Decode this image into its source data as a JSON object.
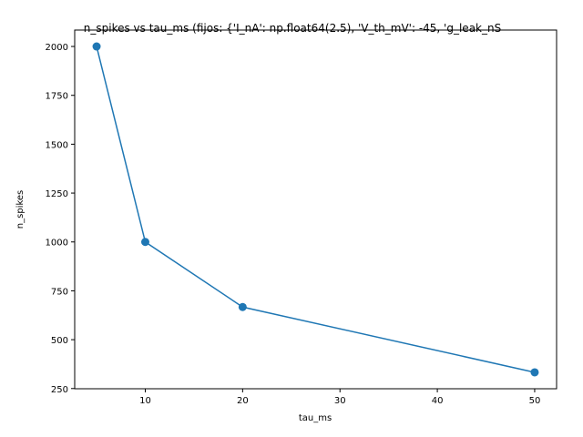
{
  "chart_data": {
    "type": "line",
    "title": "n_spikes vs tau_ms (fijos: {'I_nA': np.float64(2.5), 'V_th_mV': -45, 'g_leak_nS",
    "xlabel": "tau_ms",
    "ylabel": "n_spikes",
    "x": [
      5,
      10,
      20,
      50
    ],
    "series": [
      {
        "values": [
          2000,
          1000,
          667,
          333
        ],
        "color": "#1f77b4",
        "marker": "circle"
      }
    ],
    "xlim": [
      2.75,
      52.25
    ],
    "ylim": [
      249,
      2084
    ],
    "xticks": [
      10,
      20,
      30,
      40,
      50
    ],
    "xtick_labels": [
      "10",
      "20",
      "30",
      "40",
      "50"
    ],
    "yticks": [
      250,
      500,
      750,
      1000,
      1250,
      1500,
      1750,
      2000
    ],
    "ytick_labels": [
      "250",
      "500",
      "750",
      "1000",
      "1250",
      "1500",
      "1750",
      "2000"
    ],
    "grid": false
  }
}
